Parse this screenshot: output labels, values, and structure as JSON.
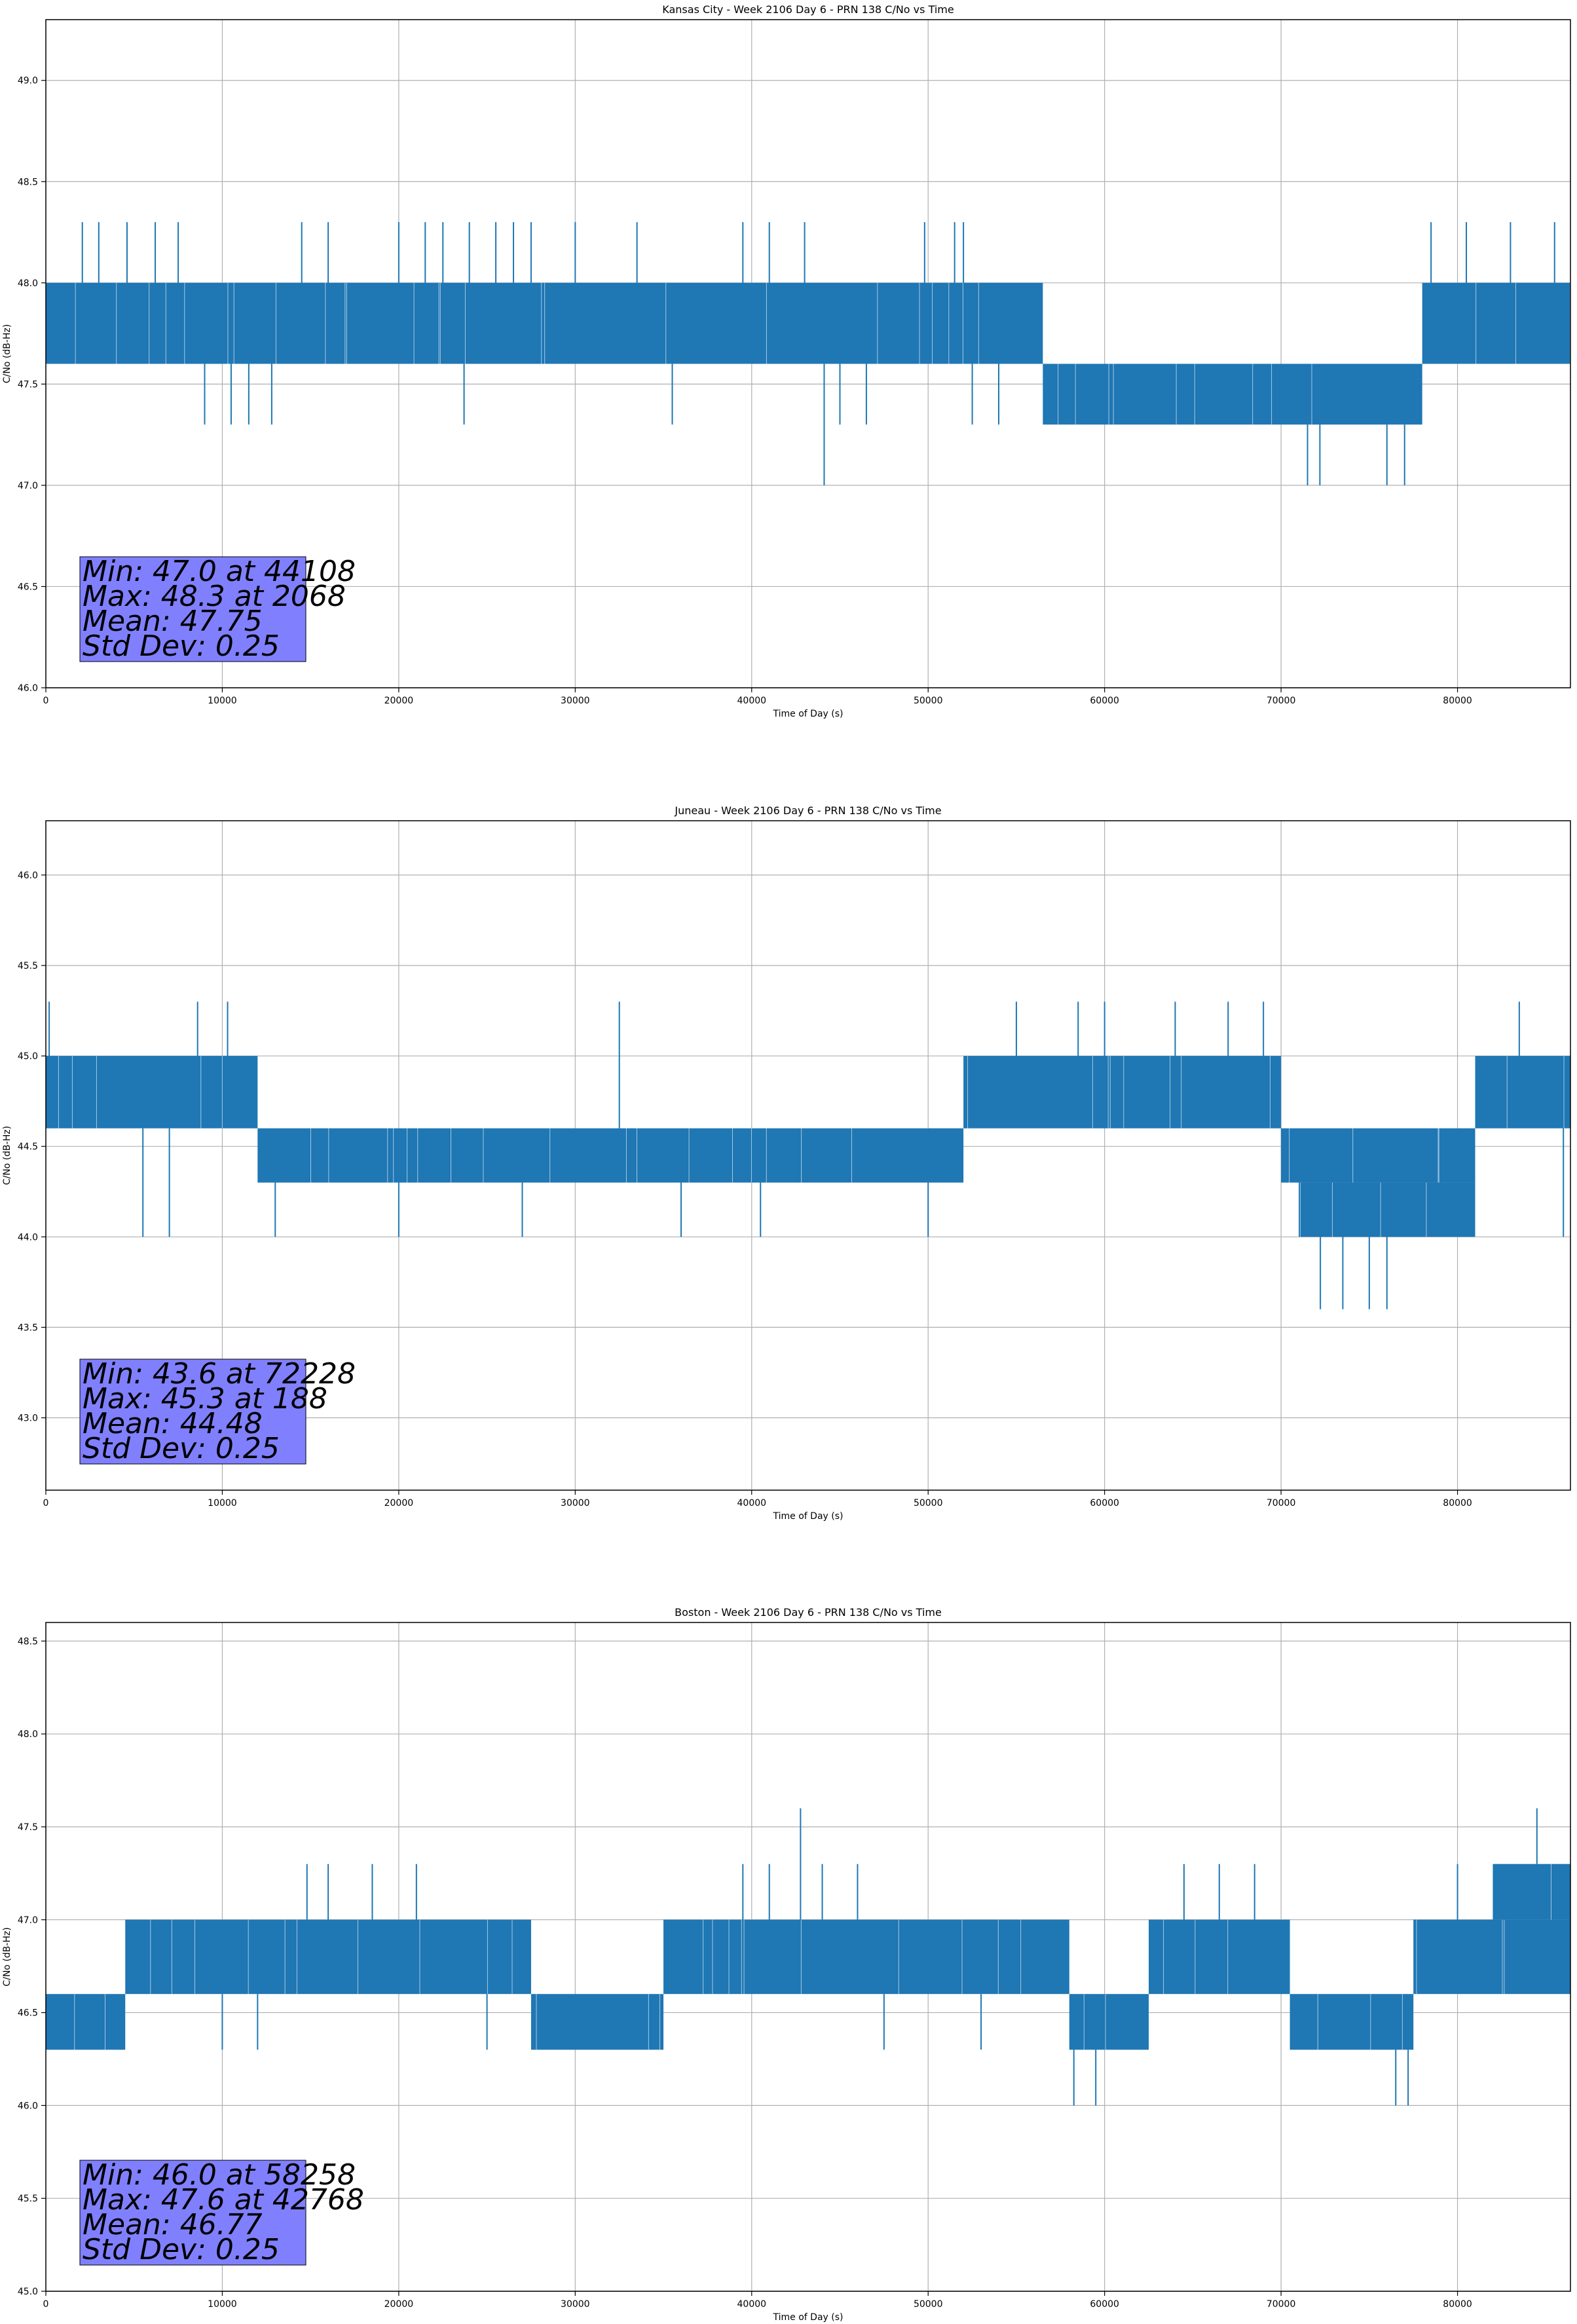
{
  "figure": {
    "background": "#ffffff",
    "line_color": "#1f77b4",
    "grid_color": "#b0b0b0",
    "stats_box_color": "#8080ff"
  },
  "chart_data": [
    {
      "type": "line",
      "title": "Kansas City - Week 2106 Day 6 - PRN 138 C/No vs Time",
      "xlabel": "Time of Day (s)",
      "ylabel": "C/No (dB-Hz)",
      "xlim": [
        0,
        86400
      ],
      "ylim": [
        46.0,
        49.3
      ],
      "xticks": [
        0,
        10000,
        20000,
        30000,
        40000,
        50000,
        60000,
        70000,
        80000
      ],
      "yticks": [
        46.0,
        46.5,
        47.0,
        47.5,
        48.0,
        48.5,
        49.0
      ],
      "grid": true,
      "stats": [
        "Min: 47.0 at 44108",
        "Max: 48.3 at 2068",
        "Mean: 47.75",
        "Std Dev: 0.25"
      ],
      "segments": [
        {
          "x": [
            0,
            56500
          ],
          "low": 47.6,
          "high": 48.0
        },
        {
          "x": [
            56500,
            78000
          ],
          "low": 47.3,
          "high": 47.6
        },
        {
          "x": [
            78000,
            86400
          ],
          "low": 47.6,
          "high": 48.0
        }
      ],
      "spikes": [
        {
          "x": 2068,
          "y": 48.3
        },
        {
          "x": 3000,
          "y": 48.3
        },
        {
          "x": 4600,
          "y": 48.3
        },
        {
          "x": 6200,
          "y": 48.3
        },
        {
          "x": 7500,
          "y": 48.3
        },
        {
          "x": 14500,
          "y": 48.3
        },
        {
          "x": 16000,
          "y": 48.3
        },
        {
          "x": 20000,
          "y": 48.3
        },
        {
          "x": 21500,
          "y": 48.3
        },
        {
          "x": 22500,
          "y": 48.3
        },
        {
          "x": 24000,
          "y": 48.3
        },
        {
          "x": 25500,
          "y": 48.3
        },
        {
          "x": 26500,
          "y": 48.3
        },
        {
          "x": 27500,
          "y": 48.3
        },
        {
          "x": 30000,
          "y": 48.3
        },
        {
          "x": 33500,
          "y": 48.3
        },
        {
          "x": 39500,
          "y": 48.3
        },
        {
          "x": 41000,
          "y": 48.3
        },
        {
          "x": 43000,
          "y": 48.3
        },
        {
          "x": 49800,
          "y": 48.3
        },
        {
          "x": 51500,
          "y": 48.3
        },
        {
          "x": 52000,
          "y": 48.3
        },
        {
          "x": 78500,
          "y": 48.3
        },
        {
          "x": 80500,
          "y": 48.3
        },
        {
          "x": 83000,
          "y": 48.3
        },
        {
          "x": 85500,
          "y": 48.3
        },
        {
          "x": 9000,
          "y": 47.3
        },
        {
          "x": 10500,
          "y": 47.3
        },
        {
          "x": 11500,
          "y": 47.3
        },
        {
          "x": 12800,
          "y": 47.3
        },
        {
          "x": 23700,
          "y": 47.3
        },
        {
          "x": 35500,
          "y": 47.3
        },
        {
          "x": 44108,
          "y": 47.0
        },
        {
          "x": 45000,
          "y": 47.3
        },
        {
          "x": 46500,
          "y": 47.3
        },
        {
          "x": 52500,
          "y": 47.3
        },
        {
          "x": 54000,
          "y": 47.3
        },
        {
          "x": 71500,
          "y": 47.0
        },
        {
          "x": 72200,
          "y": 47.0
        },
        {
          "x": 76000,
          "y": 47.0
        },
        {
          "x": 77000,
          "y": 47.0
        }
      ]
    },
    {
      "type": "line",
      "title": "Juneau - Week 2106 Day 6 - PRN 138 C/No vs Time",
      "xlabel": "Time of Day (s)",
      "ylabel": "C/No (dB-Hz)",
      "xlim": [
        0,
        86400
      ],
      "ylim": [
        42.6,
        46.3
      ],
      "xticks": [
        0,
        10000,
        20000,
        30000,
        40000,
        50000,
        60000,
        70000,
        80000
      ],
      "yticks": [
        43.0,
        43.5,
        44.0,
        44.5,
        45.0,
        45.5,
        46.0
      ],
      "grid": true,
      "stats": [
        "Min: 43.6 at 72228",
        "Max: 45.3 at 188",
        "Mean: 44.48",
        "Std Dev: 0.25"
      ],
      "segments": [
        {
          "x": [
            0,
            12000
          ],
          "low": 44.6,
          "high": 45.0
        },
        {
          "x": [
            12000,
            52000
          ],
          "low": 44.3,
          "high": 44.6
        },
        {
          "x": [
            52000,
            70000
          ],
          "low": 44.6,
          "high": 45.0
        },
        {
          "x": [
            70000,
            81000
          ],
          "low": 44.3,
          "high": 44.6
        },
        {
          "x": [
            71000,
            81000
          ],
          "low": 44.0,
          "high": 44.3
        },
        {
          "x": [
            81000,
            86400
          ],
          "low": 44.6,
          "high": 45.0
        }
      ],
      "spikes": [
        {
          "x": 188,
          "y": 45.3
        },
        {
          "x": 8600,
          "y": 45.3
        },
        {
          "x": 10300,
          "y": 45.3
        },
        {
          "x": 32500,
          "y": 45.3
        },
        {
          "x": 55000,
          "y": 45.3
        },
        {
          "x": 58500,
          "y": 45.3
        },
        {
          "x": 60000,
          "y": 45.3
        },
        {
          "x": 64000,
          "y": 45.3
        },
        {
          "x": 67000,
          "y": 45.3
        },
        {
          "x": 69000,
          "y": 45.3
        },
        {
          "x": 83500,
          "y": 45.3
        },
        {
          "x": 5500,
          "y": 44.0
        },
        {
          "x": 7000,
          "y": 44.0
        },
        {
          "x": 13000,
          "y": 44.0
        },
        {
          "x": 20000,
          "y": 44.0
        },
        {
          "x": 27000,
          "y": 44.0
        },
        {
          "x": 36000,
          "y": 44.0
        },
        {
          "x": 40500,
          "y": 44.0
        },
        {
          "x": 50000,
          "y": 44.0
        },
        {
          "x": 72228,
          "y": 43.6
        },
        {
          "x": 73500,
          "y": 43.6
        },
        {
          "x": 75000,
          "y": 43.6
        },
        {
          "x": 76000,
          "y": 43.6
        },
        {
          "x": 86000,
          "y": 44.0
        }
      ]
    },
    {
      "type": "line",
      "title": "Boston - Week 2106 Day 6 - PRN 138 C/No vs Time",
      "xlabel": "Time of Day (s)",
      "ylabel": "C/No (dB-Hz)",
      "xlim": [
        0,
        86400
      ],
      "ylim": [
        45.0,
        48.6
      ],
      "xticks": [
        0,
        10000,
        20000,
        30000,
        40000,
        50000,
        60000,
        70000,
        80000
      ],
      "yticks": [
        45.0,
        45.5,
        46.0,
        46.5,
        47.0,
        47.5,
        48.0,
        48.5
      ],
      "grid": true,
      "stats": [
        "Min: 46.0 at 58258",
        "Max: 47.6 at 42768",
        "Mean: 46.77",
        "Std Dev: 0.25"
      ],
      "segments": [
        {
          "x": [
            0,
            4500
          ],
          "low": 46.3,
          "high": 46.6
        },
        {
          "x": [
            4500,
            27500
          ],
          "low": 46.6,
          "high": 47.0
        },
        {
          "x": [
            27500,
            35000
          ],
          "low": 46.3,
          "high": 46.6
        },
        {
          "x": [
            35000,
            58000
          ],
          "low": 46.6,
          "high": 47.0
        },
        {
          "x": [
            58000,
            62500
          ],
          "low": 46.3,
          "high": 46.6
        },
        {
          "x": [
            62500,
            70500
          ],
          "low": 46.6,
          "high": 47.0
        },
        {
          "x": [
            70500,
            77500
          ],
          "low": 46.3,
          "high": 46.6
        },
        {
          "x": [
            77500,
            86400
          ],
          "low": 46.6,
          "high": 47.0
        },
        {
          "x": [
            82000,
            86400
          ],
          "low": 47.0,
          "high": 47.3
        }
      ],
      "spikes": [
        {
          "x": 42768,
          "y": 47.6
        },
        {
          "x": 84500,
          "y": 47.6
        },
        {
          "x": 14800,
          "y": 47.3
        },
        {
          "x": 16000,
          "y": 47.3
        },
        {
          "x": 18500,
          "y": 47.3
        },
        {
          "x": 21000,
          "y": 47.3
        },
        {
          "x": 39500,
          "y": 47.3
        },
        {
          "x": 41000,
          "y": 47.3
        },
        {
          "x": 44000,
          "y": 47.3
        },
        {
          "x": 46000,
          "y": 47.3
        },
        {
          "x": 64500,
          "y": 47.3
        },
        {
          "x": 66500,
          "y": 47.3
        },
        {
          "x": 68500,
          "y": 47.3
        },
        {
          "x": 80000,
          "y": 47.3
        },
        {
          "x": 58258,
          "y": 46.0
        },
        {
          "x": 59500,
          "y": 46.0
        },
        {
          "x": 76500,
          "y": 46.0
        },
        {
          "x": 77200,
          "y": 46.0
        },
        {
          "x": 2000,
          "y": 46.3
        },
        {
          "x": 10000,
          "y": 46.3
        },
        {
          "x": 12000,
          "y": 46.3
        },
        {
          "x": 25000,
          "y": 46.3
        },
        {
          "x": 47500,
          "y": 46.3
        },
        {
          "x": 53000,
          "y": 46.3
        }
      ]
    }
  ]
}
